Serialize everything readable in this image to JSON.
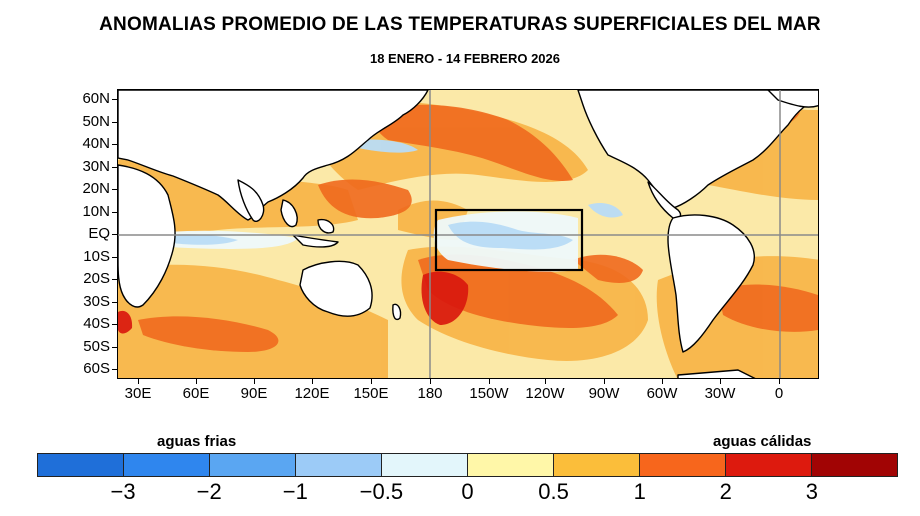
{
  "header": {
    "title": "ANOMALIAS PROMEDIO DE LAS TEMPERATURAS SUPERFICIALES DEL MAR",
    "subtitle": "18 ENERO - 14 FEBRERO 2026"
  },
  "map": {
    "lat_labels": [
      "60N",
      "50N",
      "40N",
      "30N",
      "20N",
      "10N",
      "EQ",
      "10S",
      "20S",
      "30S",
      "40S",
      "50S",
      "60S"
    ],
    "lon_labels": [
      "30E",
      "60E",
      "90E",
      "120E",
      "150E",
      "180",
      "150W",
      "120W",
      "90W",
      "60W",
      "30W",
      "0"
    ],
    "highlight_box": "Niño 3.4 region (rectangle outline, central/east Pacific)"
  },
  "legend": {
    "cold_label": "aguas frias",
    "warm_label": "aguas cálidas",
    "ticks": [
      "−3",
      "−2",
      "−1",
      "−0.5",
      "0",
      "0.5",
      "1",
      "2",
      "3"
    ],
    "colors": [
      "#1f6fd9",
      "#2f86ee",
      "#5aa6f2",
      "#9ccbf7",
      "#e3f6fb",
      "#fff7a8",
      "#fbbe3a",
      "#f7661c",
      "#dd1a0e",
      "#a10404"
    ]
  }
}
